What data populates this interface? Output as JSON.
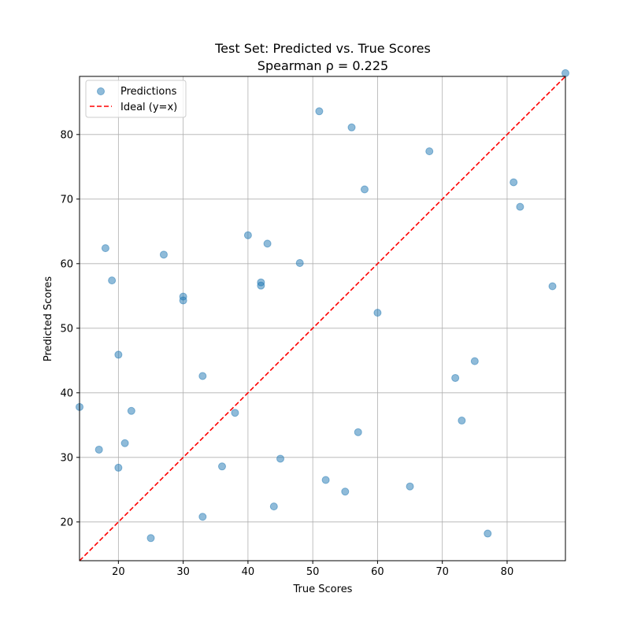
{
  "chart_data": {
    "type": "scatter",
    "title": "Test Set: Predicted vs. True Scores",
    "subtitle": "Spearman ρ = 0.225",
    "xlabel": "True Scores",
    "ylabel": "Predicted Scores",
    "xlim": [
      14,
      89
    ],
    "ylim": [
      14,
      89
    ],
    "xticks": [
      20,
      30,
      40,
      50,
      60,
      70,
      80
    ],
    "yticks": [
      20,
      30,
      40,
      50,
      60,
      70,
      80
    ],
    "grid": true,
    "legend_position": "top-left",
    "series": [
      {
        "name": "Predictions",
        "marker": "circle",
        "color": "#1f77b4",
        "alpha": 0.5,
        "points": [
          [
            14,
            37.8
          ],
          [
            17,
            31.2
          ],
          [
            18,
            62.4
          ],
          [
            19,
            57.4
          ],
          [
            20,
            45.9
          ],
          [
            20,
            28.4
          ],
          [
            21,
            32.2
          ],
          [
            22,
            37.2
          ],
          [
            25,
            17.5
          ],
          [
            27,
            61.4
          ],
          [
            30,
            54.9
          ],
          [
            30,
            54.3
          ],
          [
            33,
            42.6
          ],
          [
            33,
            20.8
          ],
          [
            36,
            28.6
          ],
          [
            38,
            36.9
          ],
          [
            40,
            64.4
          ],
          [
            42,
            57.1
          ],
          [
            42,
            56.6
          ],
          [
            43,
            63.1
          ],
          [
            44,
            22.4
          ],
          [
            45,
            29.8
          ],
          [
            48,
            60.1
          ],
          [
            51,
            83.6
          ],
          [
            52,
            26.5
          ],
          [
            55,
            24.7
          ],
          [
            56,
            81.1
          ],
          [
            57,
            33.9
          ],
          [
            58,
            71.5
          ],
          [
            60,
            52.4
          ],
          [
            65,
            25.5
          ],
          [
            68,
            77.4
          ],
          [
            72,
            42.3
          ],
          [
            73,
            35.7
          ],
          [
            75,
            44.9
          ],
          [
            77,
            18.2
          ],
          [
            81,
            72.6
          ],
          [
            82,
            68.8
          ],
          [
            87,
            56.5
          ],
          [
            89,
            89.5
          ]
        ]
      },
      {
        "name": "Ideal (y=x)",
        "line_style": "dashed",
        "color": "#ff0000",
        "points": [
          [
            14,
            14
          ],
          [
            89,
            89
          ]
        ]
      }
    ]
  }
}
